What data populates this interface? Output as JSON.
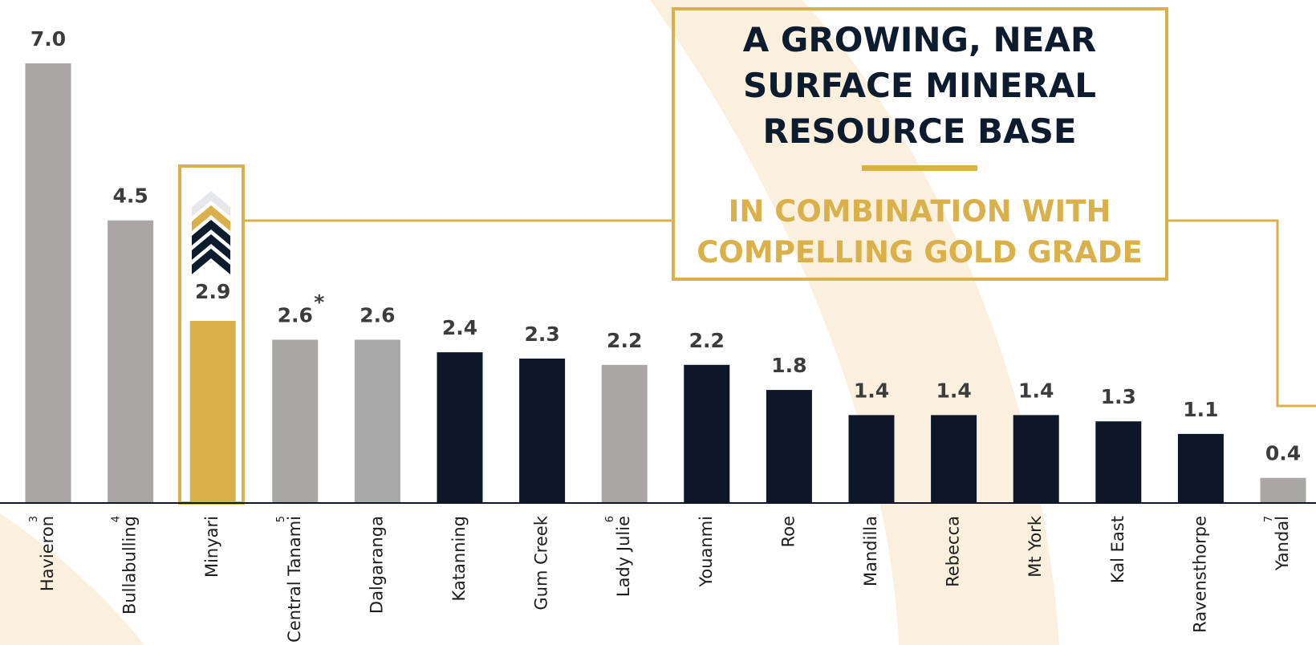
{
  "chart_data": {
    "type": "bar",
    "title": [
      "A GROWING, NEAR",
      "SURFACE MINERAL",
      "RESOURCE BASE"
    ],
    "subtitle": [
      "IN COMBINATION WITH",
      "COMPELLING GOLD GRADE"
    ],
    "categories": [
      "Havieron",
      "Bullabulling",
      "Minyari",
      "Central Tanami",
      "Dalgaranga",
      "Katanning",
      "Gum Creek",
      "Lady Julie",
      "Youanmi",
      "Roe",
      "Mandilla",
      "Rebecca",
      "Mt York",
      "Kal East",
      "Ravensthorpe",
      "Yandal"
    ],
    "footnotes": [
      "3",
      "4",
      null,
      "5",
      null,
      null,
      null,
      "6",
      null,
      null,
      null,
      null,
      null,
      null,
      null,
      "7"
    ],
    "values": [
      7.0,
      4.5,
      2.9,
      2.6,
      2.6,
      2.4,
      2.3,
      2.2,
      2.2,
      1.8,
      1.4,
      1.4,
      1.4,
      1.3,
      1.1,
      0.4
    ],
    "value_labels": [
      "7.0",
      "4.5",
      "2.9",
      "2.6",
      "2.6",
      "2.4",
      "2.3",
      "2.2",
      "2.2",
      "1.8",
      "1.4",
      "1.4",
      "1.4",
      "1.3",
      "1.1",
      "0.4"
    ],
    "annotations": [
      {
        "index": 3,
        "text": "*"
      }
    ],
    "colors": [
      "#aaa6a6",
      "#aaa6a6",
      "#d9b04a",
      "#aaa6a6",
      "#a8a8a8",
      "#0d1729",
      "#0d1729",
      "#aaa6a6",
      "#0d1729",
      "#0d1729",
      "#0d1729",
      "#0d1729",
      "#0d1729",
      "#0d1729",
      "#0d1729",
      "#aaa6a6"
    ],
    "ylim": [
      0,
      7.0
    ]
  }
}
